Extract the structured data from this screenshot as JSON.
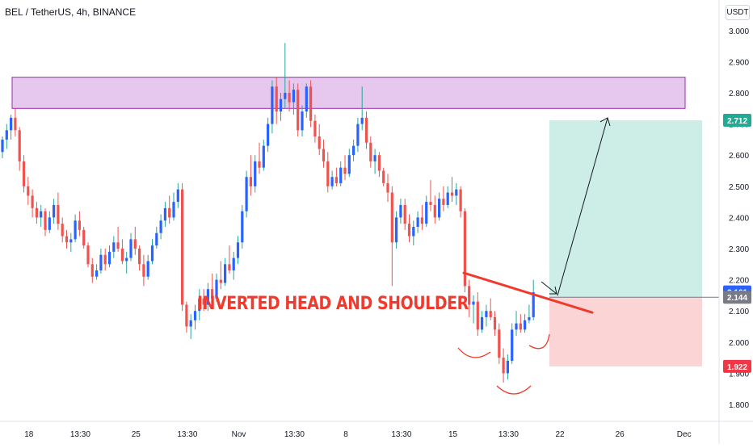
{
  "header": {
    "symbol_title": "BEL / TetherUS, 4h, BINANCE",
    "currency": "USDT"
  },
  "annotation_text": "INVERTED HEAD AND SHOULDER",
  "colors": {
    "up": "#2962ff",
    "down": "#ef5350",
    "wick_up": "#26a69a",
    "resistance_fill": "#e6c8ef",
    "resistance_stroke": "#9c27b0",
    "target_fill": "#cdeee6",
    "stop_fill": "#fbd5d5",
    "neckline": "#ef3b2e",
    "arrow": "#131722"
  },
  "chart_data": {
    "type": "candlestick",
    "title": "BEL / TetherUS, 4h, BINANCE",
    "xlabel": "",
    "ylabel": "",
    "ylim": [
      1.75,
      3.03
    ],
    "y_ticks": [
      "3.000",
      "2.900",
      "2.800",
      "2.700",
      "2.600",
      "2.500",
      "2.400",
      "2.300",
      "2.200",
      "2.100",
      "2.000",
      "1.900",
      "1.800"
    ],
    "x_ticks": [
      "18",
      "13:30",
      "25",
      "13:30",
      "Nov",
      "13:30",
      "8",
      "13:30",
      "15",
      "13:30",
      "22",
      "26",
      "Dec"
    ],
    "price_labels": [
      {
        "value": 2.712,
        "text": "2.712",
        "color": "#22ab94"
      },
      {
        "value": 2.161,
        "text": "2.161",
        "color": "#2962ff"
      },
      {
        "value": 2.144,
        "text": "2.144",
        "color": "#787b86"
      },
      {
        "value": 1.922,
        "text": "1.922",
        "color": "#f23645"
      }
    ],
    "resistance_zone": {
      "top": 2.85,
      "bottom": 2.75
    },
    "long_position": {
      "entry": 2.144,
      "target": 2.712,
      "stop": 1.922
    },
    "neckline": {
      "start": 2.222,
      "end": 2.095
    },
    "target_arrow": {
      "from": 2.144,
      "to": 2.712
    },
    "candles": [
      [
        2.61,
        2.66,
        2.59,
        2.65
      ],
      [
        2.65,
        2.7,
        2.62,
        2.68
      ],
      [
        2.68,
        2.73,
        2.65,
        2.72
      ],
      [
        2.72,
        2.75,
        2.66,
        2.68
      ],
      [
        2.68,
        2.69,
        2.55,
        2.58
      ],
      [
        2.58,
        2.6,
        2.48,
        2.5
      ],
      [
        2.5,
        2.53,
        2.44,
        2.47
      ],
      [
        2.47,
        2.49,
        2.4,
        2.43
      ],
      [
        2.43,
        2.45,
        2.38,
        2.4
      ],
      [
        2.4,
        2.44,
        2.37,
        2.42
      ],
      [
        2.42,
        2.43,
        2.34,
        2.36
      ],
      [
        2.36,
        2.42,
        2.35,
        2.4
      ],
      [
        2.4,
        2.46,
        2.38,
        2.44
      ],
      [
        2.44,
        2.48,
        2.36,
        2.38
      ],
      [
        2.38,
        2.4,
        2.32,
        2.34
      ],
      [
        2.34,
        2.36,
        2.3,
        2.32
      ],
      [
        2.32,
        2.35,
        2.29,
        2.33
      ],
      [
        2.33,
        2.41,
        2.32,
        2.39
      ],
      [
        2.39,
        2.42,
        2.34,
        2.36
      ],
      [
        2.36,
        2.37,
        2.3,
        2.31
      ],
      [
        2.31,
        2.32,
        2.24,
        2.25
      ],
      [
        2.25,
        2.27,
        2.19,
        2.21
      ],
      [
        2.21,
        2.25,
        2.2,
        2.23
      ],
      [
        2.23,
        2.3,
        2.22,
        2.28
      ],
      [
        2.28,
        2.3,
        2.23,
        2.25
      ],
      [
        2.25,
        2.31,
        2.24,
        2.29
      ],
      [
        2.29,
        2.34,
        2.27,
        2.32
      ],
      [
        2.32,
        2.37,
        2.29,
        2.3
      ],
      [
        2.3,
        2.33,
        2.25,
        2.26
      ],
      [
        2.26,
        2.29,
        2.22,
        2.27
      ],
      [
        2.27,
        2.35,
        2.26,
        2.33
      ],
      [
        2.33,
        2.37,
        2.28,
        2.3
      ],
      [
        2.3,
        2.31,
        2.23,
        2.25
      ],
      [
        2.25,
        2.28,
        2.18,
        2.21
      ],
      [
        2.21,
        2.28,
        2.2,
        2.26
      ],
      [
        2.26,
        2.33,
        2.25,
        2.31
      ],
      [
        2.31,
        2.37,
        2.3,
        2.35
      ],
      [
        2.35,
        2.41,
        2.33,
        2.39
      ],
      [
        2.39,
        2.45,
        2.37,
        2.43
      ],
      [
        2.43,
        2.47,
        2.38,
        2.4
      ],
      [
        2.4,
        2.48,
        2.39,
        2.45
      ],
      [
        2.45,
        2.51,
        2.43,
        2.49
      ],
      [
        2.49,
        2.51,
        2.1,
        2.12
      ],
      [
        2.12,
        2.13,
        2.03,
        2.05
      ],
      [
        2.05,
        2.09,
        2.01,
        2.07
      ],
      [
        2.07,
        2.12,
        2.04,
        2.1
      ],
      [
        2.1,
        2.17,
        2.07,
        2.14
      ],
      [
        2.14,
        2.17,
        2.1,
        2.12
      ],
      [
        2.12,
        2.19,
        2.1,
        2.17
      ],
      [
        2.17,
        2.22,
        2.12,
        2.14
      ],
      [
        2.14,
        2.22,
        2.13,
        2.2
      ],
      [
        2.2,
        2.26,
        2.17,
        2.19
      ],
      [
        2.19,
        2.27,
        2.18,
        2.25
      ],
      [
        2.25,
        2.31,
        2.22,
        2.23
      ],
      [
        2.23,
        2.29,
        2.2,
        2.27
      ],
      [
        2.27,
        2.34,
        2.25,
        2.32
      ],
      [
        2.32,
        2.44,
        2.3,
        2.42
      ],
      [
        2.42,
        2.55,
        2.4,
        2.53
      ],
      [
        2.53,
        2.6,
        2.47,
        2.5
      ],
      [
        2.5,
        2.6,
        2.48,
        2.58
      ],
      [
        2.58,
        2.64,
        2.54,
        2.56
      ],
      [
        2.56,
        2.65,
        2.55,
        2.63
      ],
      [
        2.63,
        2.72,
        2.61,
        2.7
      ],
      [
        2.7,
        2.84,
        2.67,
        2.82
      ],
      [
        2.82,
        2.85,
        2.7,
        2.74
      ],
      [
        2.74,
        2.8,
        2.71,
        2.78
      ],
      [
        2.78,
        2.96,
        2.75,
        2.8
      ],
      [
        2.8,
        2.84,
        2.74,
        2.77
      ],
      [
        2.77,
        2.83,
        2.73,
        2.81
      ],
      [
        2.81,
        2.83,
        2.66,
        2.68
      ],
      [
        2.68,
        2.76,
        2.66,
        2.74
      ],
      [
        2.74,
        2.83,
        2.72,
        2.82
      ],
      [
        2.82,
        2.84,
        2.69,
        2.71
      ],
      [
        2.71,
        2.73,
        2.64,
        2.66
      ],
      [
        2.66,
        2.7,
        2.6,
        2.62
      ],
      [
        2.62,
        2.65,
        2.56,
        2.58
      ],
      [
        2.58,
        2.61,
        2.48,
        2.5
      ],
      [
        2.5,
        2.55,
        2.49,
        2.53
      ],
      [
        2.53,
        2.56,
        2.5,
        2.51
      ],
      [
        2.51,
        2.58,
        2.5,
        2.56
      ],
      [
        2.56,
        2.6,
        2.52,
        2.54
      ],
      [
        2.54,
        2.62,
        2.53,
        2.6
      ],
      [
        2.6,
        2.65,
        2.58,
        2.63
      ],
      [
        2.63,
        2.72,
        2.61,
        2.7
      ],
      [
        2.7,
        2.82,
        2.68,
        2.72
      ],
      [
        2.72,
        2.74,
        2.62,
        2.64
      ],
      [
        2.64,
        2.66,
        2.56,
        2.58
      ],
      [
        2.58,
        2.62,
        2.54,
        2.6
      ],
      [
        2.6,
        2.61,
        2.53,
        2.55
      ],
      [
        2.55,
        2.56,
        2.5,
        2.51
      ],
      [
        2.51,
        2.54,
        2.45,
        2.48
      ],
      [
        2.48,
        2.5,
        2.18,
        2.32
      ],
      [
        2.32,
        2.42,
        2.3,
        2.4
      ],
      [
        2.4,
        2.46,
        2.38,
        2.44
      ],
      [
        2.44,
        2.46,
        2.36,
        2.38
      ],
      [
        2.38,
        2.41,
        2.32,
        2.34
      ],
      [
        2.34,
        2.39,
        2.31,
        2.37
      ],
      [
        2.37,
        2.42,
        2.35,
        2.4
      ],
      [
        2.4,
        2.44,
        2.36,
        2.38
      ],
      [
        2.38,
        2.47,
        2.37,
        2.45
      ],
      [
        2.45,
        2.52,
        2.42,
        2.44
      ],
      [
        2.44,
        2.47,
        2.38,
        2.4
      ],
      [
        2.4,
        2.48,
        2.39,
        2.46
      ],
      [
        2.46,
        2.5,
        2.42,
        2.44
      ],
      [
        2.44,
        2.5,
        2.43,
        2.48
      ],
      [
        2.48,
        2.53,
        2.45,
        2.47
      ],
      [
        2.47,
        2.51,
        2.44,
        2.49
      ],
      [
        2.49,
        2.5,
        2.4,
        2.42
      ],
      [
        2.42,
        2.43,
        2.16,
        2.18
      ],
      [
        2.18,
        2.2,
        2.08,
        2.12
      ],
      [
        2.12,
        2.15,
        2.06,
        2.13
      ],
      [
        2.13,
        2.16,
        2.02,
        2.04
      ],
      [
        2.04,
        2.1,
        2.03,
        2.08
      ],
      [
        2.08,
        2.12,
        2.05,
        2.1
      ],
      [
        2.1,
        2.14,
        2.07,
        2.08
      ],
      [
        2.08,
        2.1,
        2.02,
        2.04
      ],
      [
        2.04,
        2.06,
        1.93,
        1.95
      ],
      [
        1.95,
        1.98,
        1.87,
        1.9
      ],
      [
        1.9,
        1.96,
        1.88,
        1.94
      ],
      [
        1.94,
        2.06,
        1.93,
        2.04
      ],
      [
        2.04,
        2.1,
        2.02,
        2.06
      ],
      [
        2.06,
        2.09,
        2.03,
        2.04
      ],
      [
        2.04,
        2.09,
        2.03,
        2.07
      ],
      [
        2.07,
        2.12,
        2.06,
        2.08
      ],
      [
        2.08,
        2.2,
        2.07,
        2.16
      ]
    ]
  }
}
